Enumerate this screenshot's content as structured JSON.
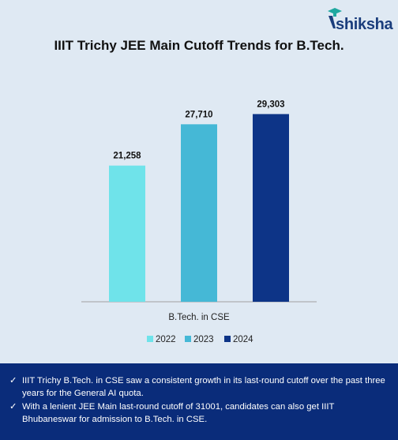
{
  "brand": {
    "name": "shiksha"
  },
  "chart_data": {
    "type": "bar",
    "title": "IIIT Trichy JEE Main Cutoff Trends for B.Tech.",
    "categories": [
      "B.Tech. in CSE"
    ],
    "series": [
      {
        "name": "2022",
        "values": [
          21258
        ],
        "label": "21,258",
        "color": "#6fe3ea"
      },
      {
        "name": "2023",
        "values": [
          27710
        ],
        "label": "27,710",
        "color": "#45b8d6"
      },
      {
        "name": "2024",
        "values": [
          29303
        ],
        "label": "29,303",
        "color": "#0d3487"
      }
    ],
    "ylim": [
      0,
      37000
    ],
    "grid": false,
    "legend": "bottom"
  },
  "notes": [
    "IIIT Trichy B.Tech. in CSE saw a consistent growth in its last-round cutoff over the past three years for the General AI quota.",
    "With a lenient JEE Main last-round cutoff of 31001, candidates can also get IIIT Bhubaneswar for admission to B.Tech. in CSE."
  ],
  "tick_symbol": "✓"
}
